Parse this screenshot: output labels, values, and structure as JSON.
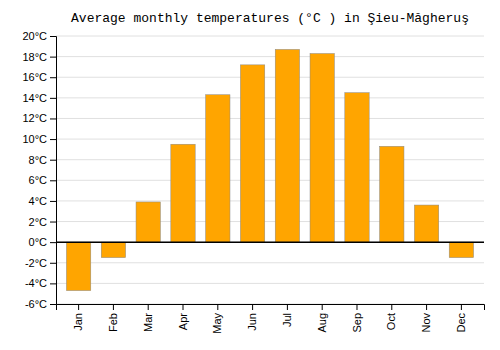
{
  "chart_data": {
    "type": "bar",
    "title": "Average monthly temperatures (°C ) in Şieu-Măgheruş",
    "categories": [
      "Jan",
      "Feb",
      "Mar",
      "Apr",
      "May",
      "Jun",
      "Jul",
      "Aug",
      "Sep",
      "Oct",
      "Nov",
      "Dec"
    ],
    "values": [
      -4.7,
      -1.5,
      3.9,
      9.5,
      14.3,
      17.2,
      18.7,
      18.3,
      14.5,
      9.3,
      3.6,
      -1.5
    ],
    "color": "#FFA500",
    "ylim": [
      -6,
      20
    ],
    "yticks": [
      {
        "value": -6,
        "label": "-6°C"
      },
      {
        "value": -4,
        "label": "-4°C"
      },
      {
        "value": -2,
        "label": "-2°C"
      },
      {
        "value": 0,
        "label": "0°C"
      },
      {
        "value": 2,
        "label": "2°C"
      },
      {
        "value": 4,
        "label": "4°C"
      },
      {
        "value": 6,
        "label": "6°C"
      },
      {
        "value": 8,
        "label": "8°C"
      },
      {
        "value": 10,
        "label": "10°C"
      },
      {
        "value": 12,
        "label": "12°C"
      },
      {
        "value": 14,
        "label": "14°C"
      },
      {
        "value": 16,
        "label": "16°C"
      },
      {
        "value": 18,
        "label": "18°C"
      },
      {
        "value": 20,
        "label": "20°C"
      }
    ],
    "grid": true
  }
}
